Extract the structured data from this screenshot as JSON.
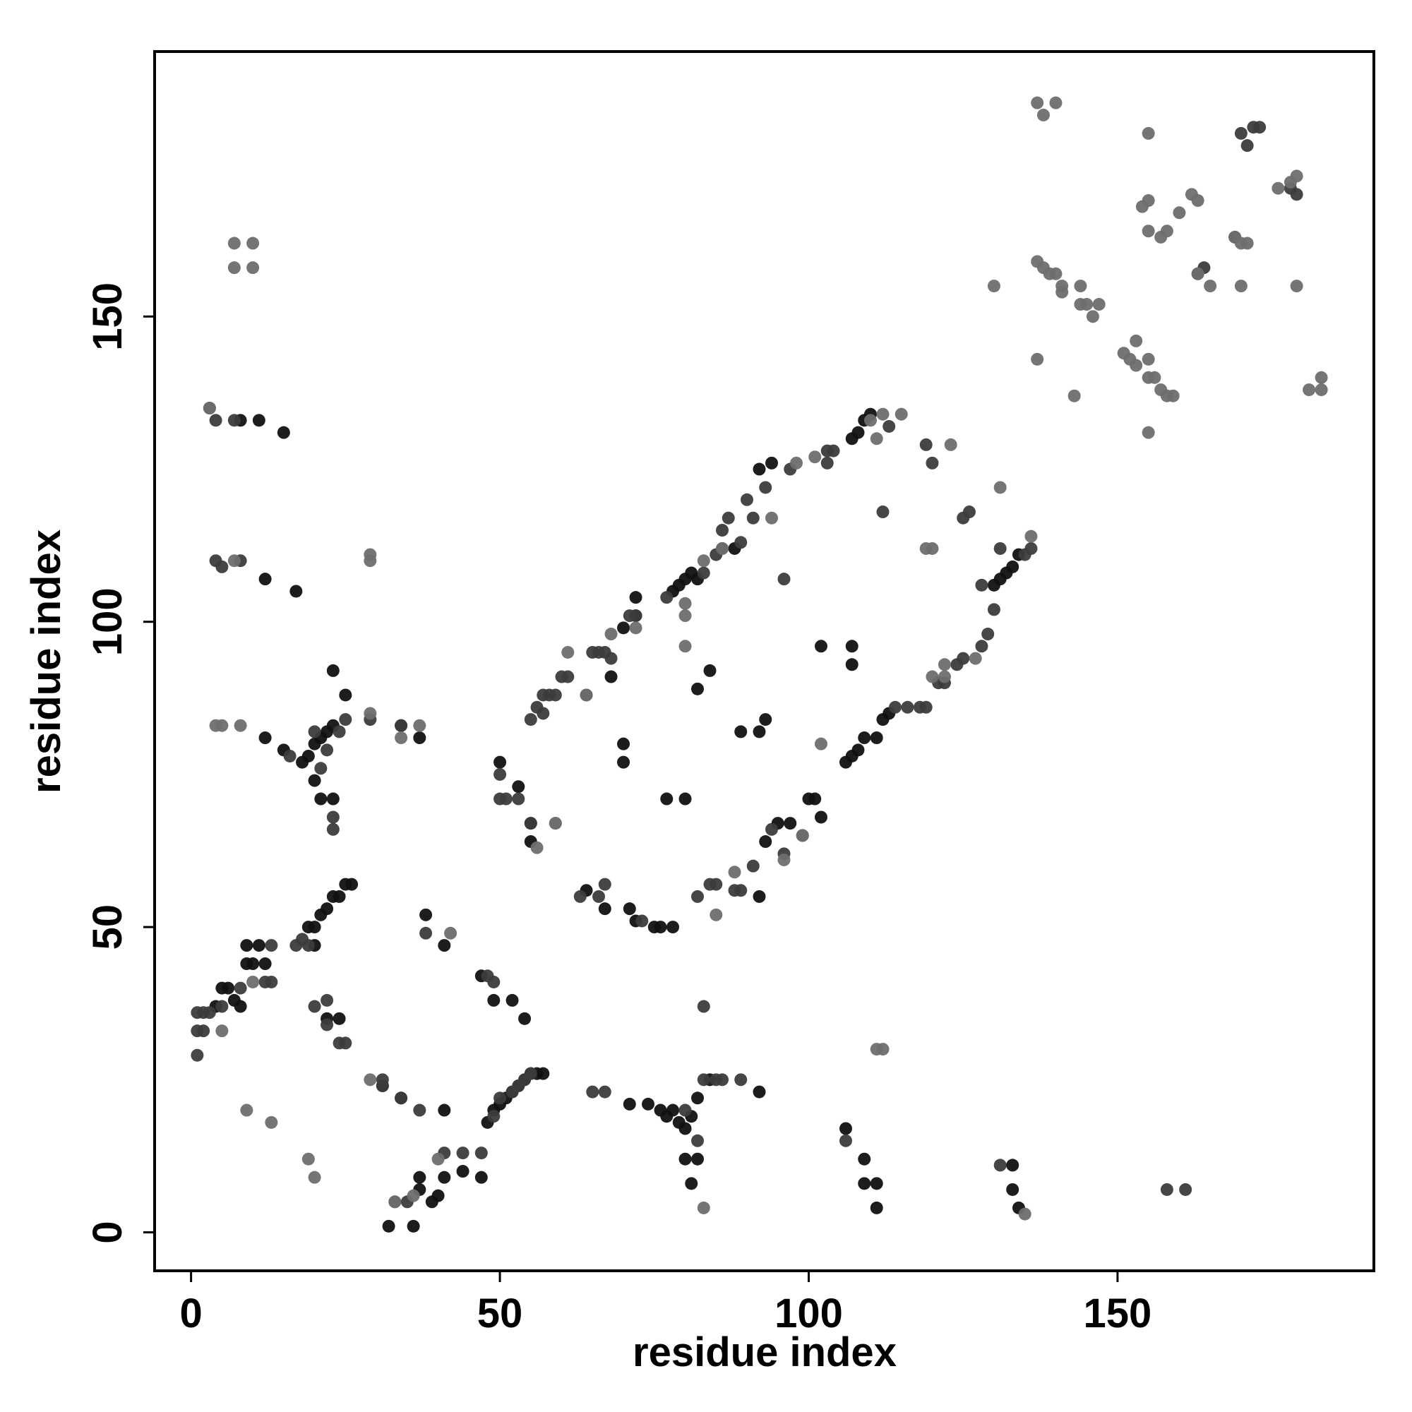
{
  "chart_data": {
    "type": "scatter",
    "x_label": "residue index",
    "y_label": "residue index",
    "xlim": [
      -5.9,
      191.5
    ],
    "ylim": [
      -6.3,
      193.4
    ],
    "xticks": [
      0,
      50,
      100,
      150
    ],
    "yticks": [
      0,
      50,
      100,
      150
    ],
    "grid": false,
    "series": [
      {
        "color": "#111111",
        "x": [
          4,
          5,
          6,
          7,
          9,
          10,
          9,
          11,
          12,
          19,
          20,
          21,
          22,
          23,
          24,
          25,
          26,
          20,
          8,
          22,
          24,
          32,
          36,
          37,
          37,
          39,
          40,
          41,
          44,
          47,
          48,
          49,
          50,
          51,
          52,
          53,
          54,
          55,
          56,
          57,
          41,
          31,
          34,
          41,
          38,
          47,
          49,
          52,
          54,
          71,
          74,
          76,
          77,
          78,
          79,
          80,
          81,
          82,
          84,
          92,
          80,
          82,
          81,
          106,
          109,
          109,
          111,
          111,
          133,
          133,
          134,
          8,
          11,
          12,
          15,
          17,
          12,
          15,
          18,
          19,
          20,
          21,
          22,
          23,
          23,
          25,
          20,
          21,
          23,
          34,
          37,
          50,
          53,
          55,
          55,
          68,
          70,
          72,
          72,
          78,
          79,
          80,
          81,
          82,
          88,
          92,
          94,
          107,
          108,
          109,
          110,
          64,
          67,
          71,
          72,
          75,
          76,
          78,
          92,
          93,
          95,
          97,
          100,
          101,
          102,
          106,
          107,
          108,
          109,
          111,
          112,
          113,
          130,
          131,
          132,
          133,
          134,
          70,
          70,
          77,
          80,
          84,
          82,
          89,
          92,
          93,
          102,
          107,
          107
        ],
        "values": [
          37,
          40,
          40,
          38,
          44,
          44,
          47,
          47,
          44,
          50,
          50,
          52,
          53,
          55,
          55,
          57,
          57,
          47,
          37,
          35,
          35,
          1,
          1,
          7,
          9,
          5,
          6,
          9,
          10,
          9,
          18,
          20,
          21,
          22,
          23,
          24,
          25,
          26,
          26,
          26,
          20,
          24,
          22,
          47,
          52,
          42,
          38,
          38,
          35,
          21,
          21,
          20,
          19,
          20,
          18,
          17,
          19,
          22,
          25,
          23,
          12,
          12,
          8,
          17,
          12,
          8,
          8,
          4,
          11,
          7,
          4,
          133,
          133,
          107,
          131,
          105,
          81,
          79,
          77,
          78,
          80,
          81,
          82,
          83,
          92,
          88,
          74,
          71,
          71,
          83,
          81,
          77,
          73,
          67,
          64,
          91,
          99,
          104,
          101,
          105,
          106,
          107,
          108,
          107,
          112,
          125,
          126,
          130,
          131,
          133,
          134,
          56,
          53,
          53,
          51,
          50,
          50,
          50,
          55,
          64,
          67,
          67,
          71,
          71,
          68,
          77,
          78,
          79,
          81,
          81,
          84,
          85,
          106,
          107,
          108,
          109,
          111,
          80,
          77,
          71,
          71,
          92,
          89,
          82,
          82,
          84,
          96,
          96,
          93
        ]
      },
      {
        "color": "#3c3c3c",
        "x": [
          1,
          1,
          2,
          3,
          5,
          8,
          12,
          13,
          17,
          18,
          1,
          2,
          13,
          19,
          20,
          22,
          22,
          24,
          25,
          31,
          33,
          35,
          41,
          44,
          47,
          49,
          50,
          52,
          53,
          55,
          31,
          34,
          37,
          38,
          48,
          49,
          54,
          65,
          67,
          80,
          82,
          83,
          85,
          86,
          89,
          83,
          106,
          131,
          158,
          161,
          3,
          4,
          7,
          4,
          5,
          8,
          16,
          22,
          24,
          25,
          23,
          23,
          21,
          20,
          29,
          34,
          50,
          51,
          50,
          53,
          55,
          57,
          59,
          55,
          56,
          57,
          58,
          60,
          61,
          64,
          65,
          66,
          67,
          68,
          71,
          72,
          77,
          83,
          85,
          86,
          86,
          87,
          89,
          90,
          91,
          93,
          97,
          103,
          104,
          113,
          119,
          120,
          63,
          66,
          67,
          73,
          82,
          84,
          85,
          88,
          89,
          91,
          94,
          96,
          99,
          114,
          116,
          118,
          119,
          121,
          122,
          124,
          125,
          128,
          129,
          135,
          136,
          130,
          128,
          131,
          125,
          126,
          96,
          103,
          112,
          170,
          169,
          178,
          163,
          164,
          171,
          172,
          173,
          179
        ],
        "values": [
          36,
          33,
          33,
          36,
          37,
          40,
          41,
          41,
          47,
          48,
          29,
          36,
          47,
          47,
          37,
          38,
          34,
          31,
          31,
          25,
          5,
          5,
          13,
          13,
          13,
          19,
          22,
          23,
          24,
          26,
          24,
          22,
          20,
          49,
          42,
          41,
          25,
          23,
          23,
          20,
          15,
          25,
          25,
          25,
          25,
          37,
          15,
          11,
          7,
          7,
          135,
          133,
          133,
          110,
          109,
          110,
          78,
          79,
          82,
          84,
          68,
          66,
          76,
          82,
          84,
          83,
          75,
          71,
          71,
          71,
          67,
          88,
          88,
          84,
          86,
          85,
          88,
          91,
          91,
          88,
          95,
          95,
          95,
          94,
          101,
          101,
          104,
          108,
          111,
          112,
          115,
          117,
          113,
          120,
          117,
          122,
          125,
          126,
          128,
          132,
          129,
          126,
          55,
          55,
          57,
          51,
          55,
          57,
          57,
          56,
          56,
          60,
          66,
          62,
          65,
          86,
          86,
          86,
          86,
          90,
          90,
          93,
          94,
          96,
          98,
          111,
          112,
          102,
          106,
          112,
          117,
          118,
          107,
          128,
          118,
          180,
          163,
          171,
          157,
          158,
          178,
          181,
          181,
          170
        ]
      },
      {
        "color": "#6e6e6e",
        "x": [
          5,
          10,
          13,
          19,
          20,
          9,
          29,
          33,
          36,
          40,
          42,
          7,
          10,
          7,
          10,
          3,
          7,
          29,
          29,
          4,
          5,
          8,
          34,
          37,
          29,
          56,
          59,
          61,
          68,
          72,
          80,
          83,
          86,
          94,
          98,
          101,
          111,
          115,
          119,
          123,
          85,
          88,
          96,
          99,
          110,
          120,
          122,
          127,
          131,
          80,
          80,
          102,
          112,
          122,
          111,
          112,
          83,
          135,
          137,
          138,
          140,
          155,
          176,
          179,
          178,
          154,
          155,
          155,
          157,
          158,
          162,
          163,
          160,
          169,
          170,
          171,
          170,
          179,
          137,
          138,
          139,
          140,
          141,
          141,
          144,
          144,
          145,
          146,
          147,
          130,
          137,
          143,
          151,
          152,
          153,
          153,
          155,
          156,
          155,
          157,
          158,
          159,
          155,
          163,
          165,
          181,
          183,
          183,
          59,
          64,
          136,
          120
        ],
        "values": [
          33,
          41,
          18,
          12,
          9,
          20,
          25,
          5,
          6,
          12,
          49,
          162,
          162,
          158,
          158,
          135,
          110,
          111,
          110,
          83,
          83,
          83,
          81,
          83,
          85,
          63,
          67,
          95,
          98,
          99,
          103,
          110,
          112,
          117,
          126,
          127,
          130,
          134,
          112,
          129,
          52,
          59,
          61,
          65,
          133,
          91,
          93,
          94,
          122,
          96,
          101,
          80,
          134,
          91,
          30,
          30,
          4,
          3,
          185,
          183,
          185,
          180,
          171,
          173,
          172,
          168,
          169,
          164,
          163,
          164,
          170,
          169,
          167,
          163,
          162,
          162,
          155,
          155,
          159,
          158,
          157,
          157,
          155,
          154,
          155,
          152,
          152,
          150,
          152,
          155,
          143,
          137,
          144,
          143,
          146,
          142,
          140,
          140,
          143,
          138,
          137,
          137,
          131,
          157,
          155,
          138,
          138,
          140,
          67,
          88,
          114,
          112
        ]
      }
    ]
  }
}
